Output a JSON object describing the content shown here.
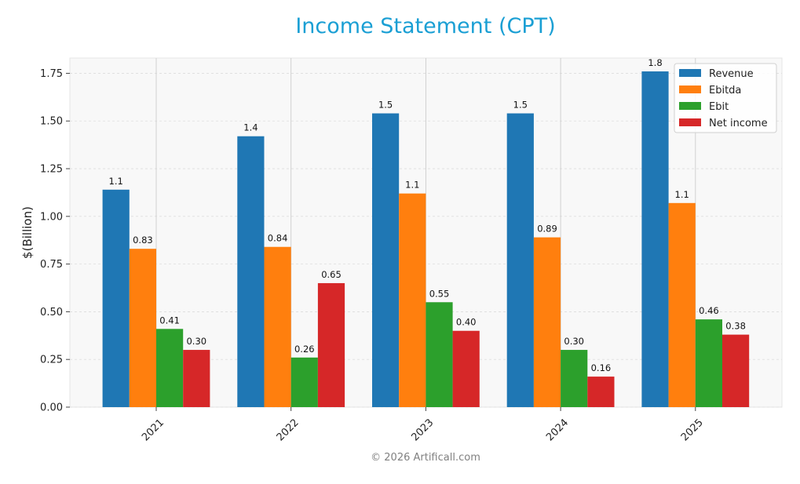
{
  "chart_data": {
    "type": "bar",
    "title": "Income Statement (CPT)",
    "xlabel": "",
    "ylabel": "$(Billion)",
    "ylim": [
      0,
      1.83
    ],
    "yticks": [
      0.0,
      0.25,
      0.5,
      0.75,
      1.0,
      1.25,
      1.5,
      1.75
    ],
    "ytick_labels": [
      "0.00",
      "0.25",
      "0.50",
      "0.75",
      "1.00",
      "1.25",
      "1.50",
      "1.75"
    ],
    "categories": [
      "2021",
      "2022",
      "2023",
      "2024",
      "2025"
    ],
    "series": [
      {
        "name": "Revenue",
        "color": "#1f77b4",
        "values": [
          1.14,
          1.42,
          1.54,
          1.54,
          1.76
        ],
        "labels": [
          "1.1",
          "1.4",
          "1.5",
          "1.5",
          "1.8"
        ]
      },
      {
        "name": "Ebitda",
        "color": "#ff7f0e",
        "values": [
          0.83,
          0.84,
          1.12,
          0.89,
          1.07
        ],
        "labels": [
          "0.83",
          "0.84",
          "1.1",
          "0.89",
          "1.1"
        ]
      },
      {
        "name": "Ebit",
        "color": "#2ca02c",
        "values": [
          0.41,
          0.26,
          0.55,
          0.3,
          0.46
        ],
        "labels": [
          "0.41",
          "0.26",
          "0.55",
          "0.30",
          "0.46"
        ]
      },
      {
        "name": "Net income",
        "color": "#d62728",
        "values": [
          0.3,
          0.65,
          0.4,
          0.16,
          0.38
        ],
        "labels": [
          "0.30",
          "0.65",
          "0.40",
          "0.16",
          "0.38"
        ]
      }
    ],
    "grid": true,
    "legend_position": "top-right"
  },
  "footer": {
    "watermark": "© 2026 Artificall.com"
  }
}
